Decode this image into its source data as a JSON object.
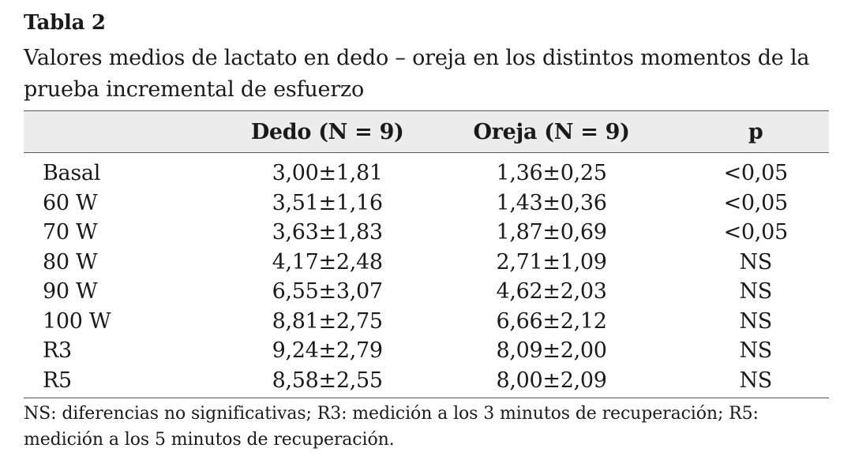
{
  "table_label": "Tabla 2",
  "caption": "Valores medios de lactato en dedo – oreja en los distintos momentos de la prueba incremental de esfuerzo",
  "headers": [
    "",
    "Dedo (N = 9)",
    "Oreja (N = 9)",
    "p"
  ],
  "rows": [
    {
      "label": "Basal",
      "dedo": "3,00±1,81",
      "oreja": "1,36±0,25",
      "p": "<0,05"
    },
    {
      "label": "60 W",
      "dedo": "3,51±1,16",
      "oreja": "1,43±0,36",
      "p": "<0,05"
    },
    {
      "label": "70 W",
      "dedo": "3,63±1,83",
      "oreja": "1,87±0,69",
      "p": "<0,05"
    },
    {
      "label": "80 W",
      "dedo": "4,17±2,48",
      "oreja": "2,71±1,09",
      "p": "NS"
    },
    {
      "label": "90 W",
      "dedo": "6,55±3,07",
      "oreja": "4,62±2,03",
      "p": "NS"
    },
    {
      "label": "100 W",
      "dedo": "8,81±2,75",
      "oreja": "6,66±2,12",
      "p": "NS"
    },
    {
      "label": "R3",
      "dedo": "9,24±2,79",
      "oreja": "8,09±2,00",
      "p": "NS"
    },
    {
      "label": "R5",
      "dedo": "8,58±2,55",
      "oreja": "8,00±2,09",
      "p": "NS"
    }
  ],
  "footnote": "NS: diferencias no significativas; R3: medición a los 3 minutos de recuperación; R5: medición a los 5 minutos de recuperación."
}
